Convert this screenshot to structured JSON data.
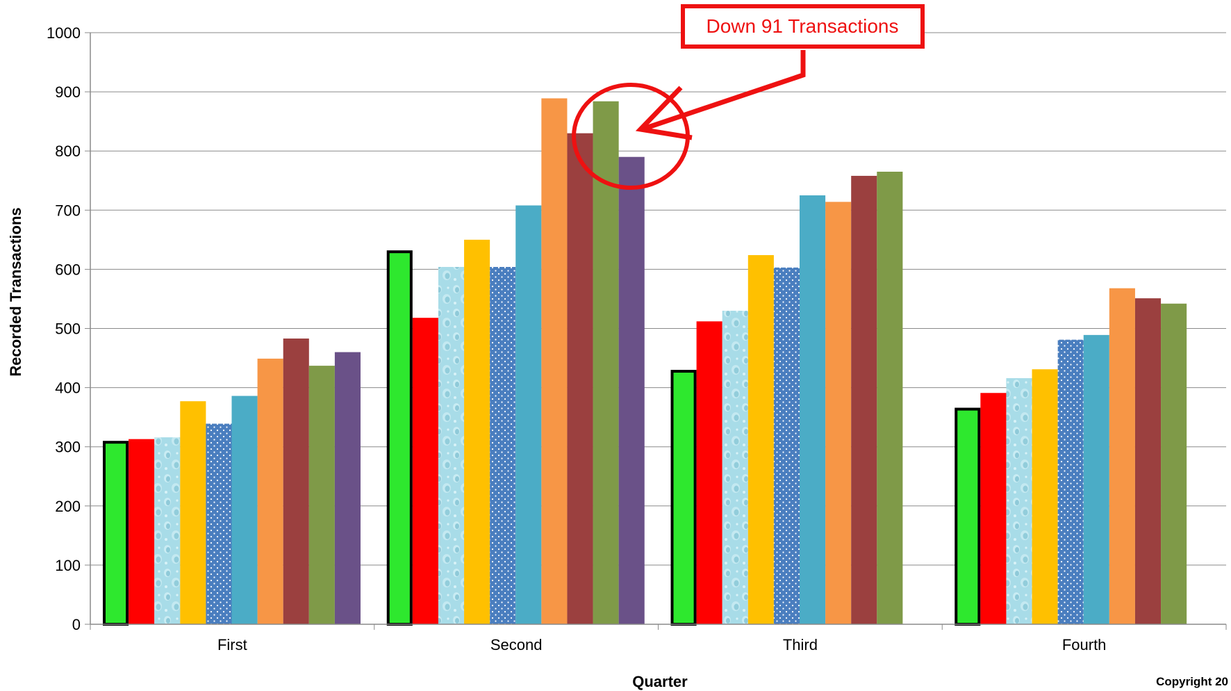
{
  "chart_data": {
    "type": "bar",
    "title": "",
    "xlabel": "Quarter",
    "ylabel": "Recorded Transactions",
    "ylim": [
      0,
      1000
    ],
    "y_ticks": [
      0,
      100,
      200,
      300,
      400,
      500,
      600,
      700,
      800,
      900,
      1000
    ],
    "grid": true,
    "categories": [
      "First",
      "Second",
      "Third",
      "Fourth"
    ],
    "series": [
      {
        "color": "#2ee82e",
        "outline": "#000000",
        "values": [
          310,
          632,
          430,
          366
        ]
      },
      {
        "color": "#ff0000",
        "values": [
          313,
          518,
          512,
          391
        ]
      },
      {
        "color": "#a8dce8",
        "pattern": "water-droplets",
        "values": [
          316,
          604,
          530,
          416
        ]
      },
      {
        "color": "#ffc000",
        "values": [
          377,
          650,
          624,
          431
        ]
      },
      {
        "color": "#4f81bd",
        "pattern": "dots",
        "values": [
          339,
          604,
          603,
          481
        ]
      },
      {
        "color": "#4bacc6",
        "values": [
          386,
          708,
          725,
          489
        ]
      },
      {
        "color": "#f79646",
        "values": [
          449,
          889,
          714,
          568
        ]
      },
      {
        "color": "#9b403f",
        "values": [
          483,
          830,
          758,
          551
        ]
      },
      {
        "color": "#7f9a48",
        "values": [
          437,
          884,
          765,
          542
        ]
      },
      {
        "color": "#6a5188",
        "values": [
          460,
          790,
          null,
          null
        ]
      }
    ],
    "annotation": {
      "text": "Down 91 Transactions",
      "color": "#ee1111"
    },
    "footer": "Copyright 20"
  }
}
